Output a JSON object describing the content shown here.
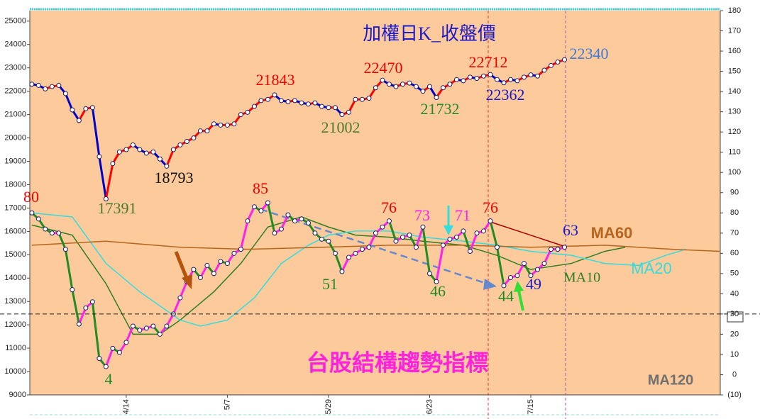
{
  "chart_data": {
    "type": "line",
    "x": [
      0,
      1,
      2,
      3,
      4,
      5,
      6,
      7,
      8,
      9,
      10,
      11,
      12,
      13,
      14,
      15,
      16,
      17,
      18,
      19,
      20,
      21,
      22,
      23,
      24,
      25,
      26,
      27,
      28,
      29,
      30,
      31,
      32,
      33,
      34,
      35,
      36,
      37,
      38,
      39,
      40,
      41,
      42,
      43,
      44,
      45,
      46,
      47,
      48,
      49,
      50,
      51,
      52,
      53,
      54,
      55,
      56,
      57,
      58,
      59,
      60,
      61,
      62,
      63,
      64,
      65,
      66,
      67,
      68,
      69,
      70,
      71,
      72,
      73,
      74,
      75,
      76,
      77,
      78,
      79
    ],
    "xlim": [
      -0.3,
      102.1
    ],
    "xticks": [
      {
        "value": 14,
        "label": "4/14"
      },
      {
        "value": 29,
        "label": "5/7"
      },
      {
        "value": 44,
        "label": "5/29"
      },
      {
        "value": 59,
        "label": "6/23"
      },
      {
        "value": 74,
        "label": "7/15"
      }
    ],
    "ylim": [
      9000,
      25450
    ],
    "yticks": [
      9000,
      10000,
      11000,
      12000,
      13000,
      14000,
      15000,
      16000,
      17000,
      18000,
      19000,
      20000,
      21000,
      22000,
      23000,
      24000,
      25000
    ],
    "y2lim": [
      -10,
      180
    ],
    "y2ticks": [
      {
        "value": -10,
        "label": "(10)"
      },
      0,
      10,
      20,
      30,
      40,
      50,
      60,
      70,
      80,
      90,
      100,
      110,
      120,
      130,
      140,
      150,
      160,
      170,
      180
    ],
    "y2_reference": 30,
    "series": [
      {
        "name": "加權日K_收盤價",
        "color": "#1a1a66",
        "up_color": "#ff0000",
        "down_color": "#0000cc",
        "style": "points",
        "values": [
          22300,
          22250,
          22100,
          22200,
          22250,
          21900,
          21200,
          20750,
          21250,
          21300,
          19200,
          17391,
          18900,
          19400,
          19500,
          19700,
          19500,
          19350,
          19400,
          19100,
          18793,
          19500,
          19700,
          19850,
          20000,
          20300,
          20300,
          20600,
          20550,
          20550,
          20600,
          21000,
          21100,
          21350,
          21600,
          21650,
          21843,
          21600,
          21550,
          21600,
          21500,
          21450,
          21500,
          21350,
          21300,
          21300,
          21002,
          21100,
          21650,
          21650,
          21700,
          22150,
          22470,
          22300,
          22200,
          22300,
          22350,
          22200,
          22000,
          22200,
          21732,
          22150,
          22300,
          22500,
          22450,
          22600,
          22550,
          22650,
          22712,
          22500,
          22362,
          22500,
          22450,
          22600,
          22700,
          22650,
          22900,
          23100,
          23250,
          23350
        ]
      },
      {
        "name": "台股結構趨勢指標",
        "color": "#1a1a66",
        "up_color": "#ff22ee",
        "down_color": "#228b22",
        "style": "points",
        "axis": "y2",
        "values": [
          80,
          77,
          72,
          70,
          70,
          62,
          42,
          25,
          33,
          36,
          8,
          4,
          13,
          11,
          16,
          24,
          22,
          23,
          24,
          20,
          24,
          30,
          38,
          46,
          52,
          48,
          54,
          50,
          56,
          55,
          60,
          62,
          76,
          83,
          81,
          85,
          70,
          72,
          79,
          76,
          77,
          75,
          70,
          67,
          66,
          60,
          51,
          58,
          60,
          62,
          63,
          70,
          73,
          76,
          66,
          68,
          69,
          63,
          73,
          50,
          46,
          64,
          67,
          68,
          71,
          61,
          70,
          71,
          76,
          63,
          44,
          48,
          49,
          55,
          49,
          52,
          55,
          62,
          62,
          63
        ]
      },
      {
        "name": "MA10",
        "color": "#2e7d1e",
        "axis": "y2",
        "style": "line",
        "x": [
          0,
          6,
          11,
          15,
          19,
          22,
          27,
          31,
          35,
          40,
          44,
          48,
          53,
          58,
          64,
          69,
          74,
          80,
          85,
          88
        ],
        "values": [
          74,
          69,
          45,
          20,
          20,
          27,
          41,
          55,
          73,
          78,
          73,
          69,
          68,
          66,
          64,
          59,
          52,
          55,
          61,
          63
        ]
      },
      {
        "name": "MA20",
        "color": "#33dddd",
        "axis": "y2",
        "style": "line",
        "x": [
          0,
          6,
          11,
          16,
          22,
          25,
          29,
          33,
          37,
          41,
          44,
          48,
          53,
          58,
          64,
          69,
          74,
          80,
          85,
          90,
          94,
          97
        ],
        "values": [
          80,
          78,
          55,
          41,
          27,
          24,
          27,
          38,
          55,
          64,
          69,
          71,
          71,
          68,
          66,
          64,
          61,
          59,
          55,
          54,
          59,
          62
        ]
      },
      {
        "name": "MA60",
        "color": "#b5651d",
        "axis": "y2",
        "style": "line",
        "x": [
          0,
          11,
          22,
          32,
          43,
          53,
          64,
          74,
          85,
          95,
          102
        ],
        "values": [
          64,
          66,
          63,
          62,
          63,
          64,
          64,
          63,
          64,
          62,
          61
        ]
      }
    ],
    "price_annotations": [
      "17391",
      "18793",
      "21843",
      "21002",
      "22470",
      "21732",
      "22712",
      "22362",
      "22340"
    ],
    "indicator_annotations": [
      "80",
      "85",
      "76",
      "73",
      "71",
      "76",
      "63",
      "51",
      "46",
      "44",
      "49",
      "4"
    ],
    "extra_label": "MA120"
  }
}
